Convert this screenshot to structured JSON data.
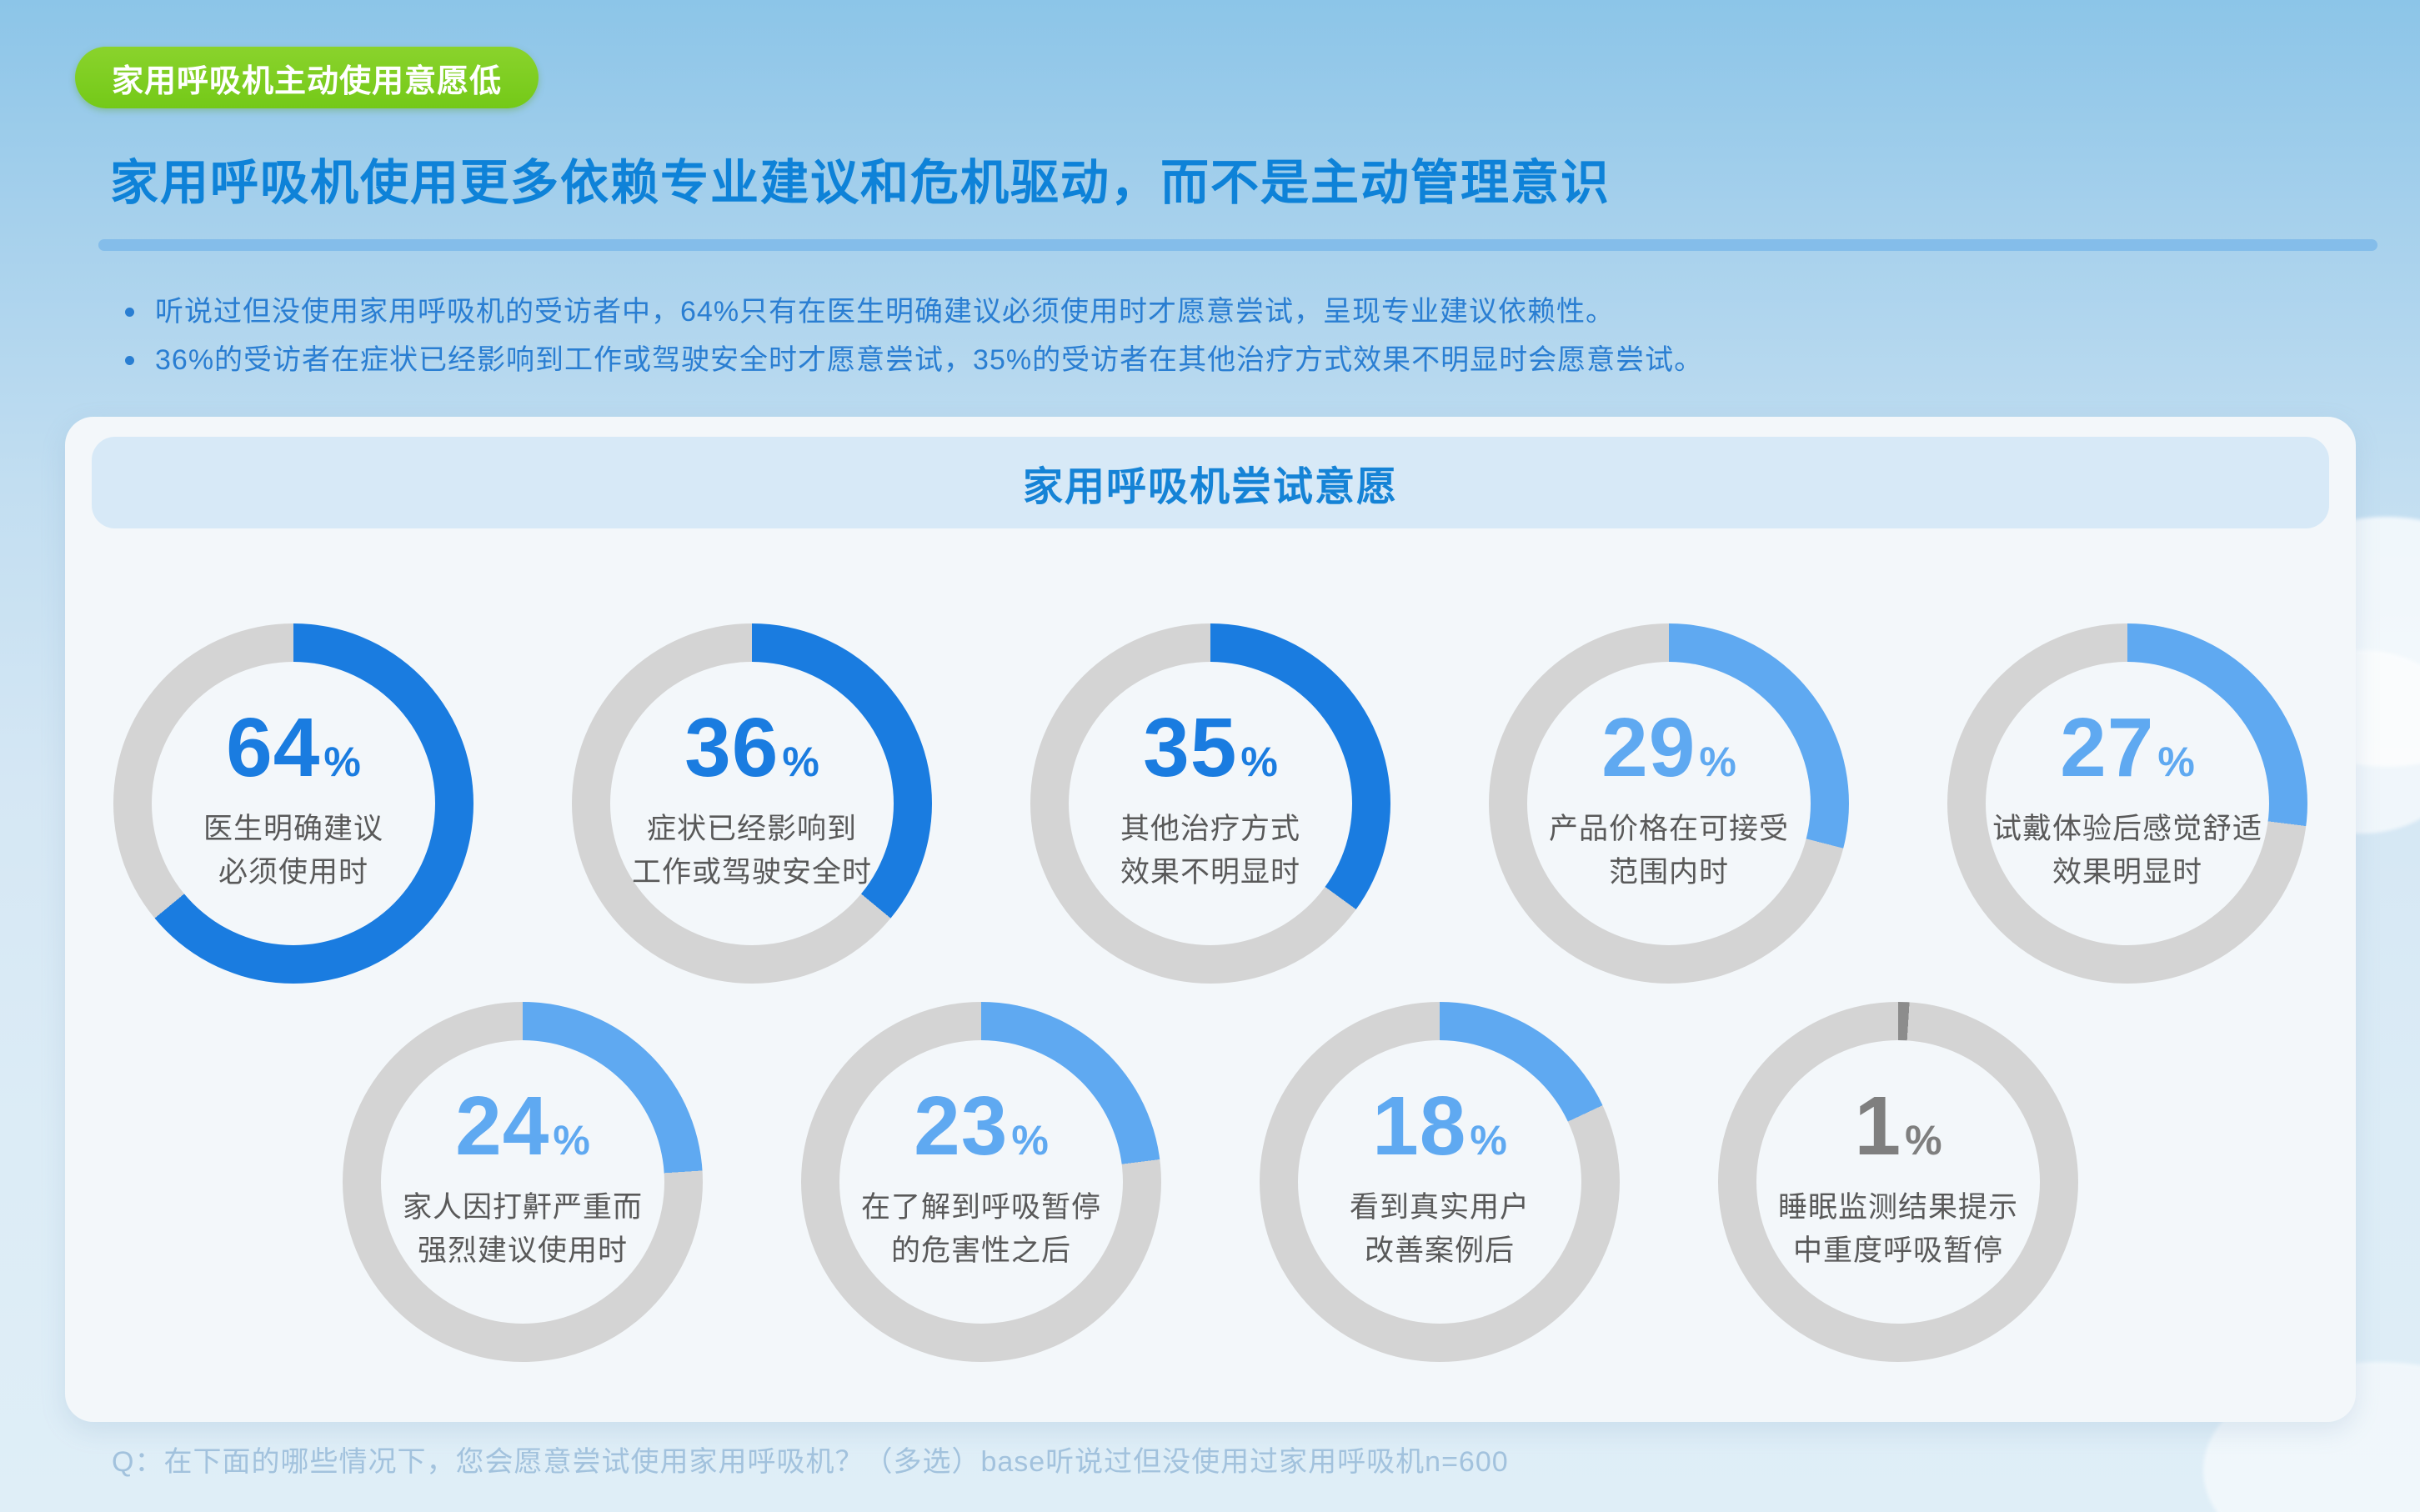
{
  "badge": {
    "label": "家用呼吸机主动使用意愿低"
  },
  "title": "家用呼吸机使用更多依赖专业建议和危机驱动，而不是主动管理意识",
  "bullets": [
    "听说过但没使用家用呼吸机的受访者中，64%只有在医生明确建议必须使用时才愿意尝试，呈现专业建议依赖性。",
    "36%的受访者在症状已经影响到工作或驾驶安全时才愿意尝试，35%的受访者在其他治疗方式效果不明显时会愿意尝试。"
  ],
  "panel": {
    "header": "家用呼吸机尝试意愿"
  },
  "footer": "Q：在下面的哪些情况下，您会愿意尝试使用家用呼吸机？（多选）base听说过但没使用过家用呼吸机n=600",
  "colors": {
    "accent_dark": "#1a7ce0",
    "accent_light": "#5fa9f1",
    "accent_gray": "#8c8c8c",
    "track_gray": "#d4d4d4",
    "title_blue": "#0e82d8",
    "badge_green": "#7ccd20"
  },
  "chart_data": {
    "type": "pie",
    "subtype": "donut-grid",
    "title": "家用呼吸机尝试意愿",
    "unit": "%",
    "start_angle": "12-oclock-clockwise",
    "items": [
      {
        "row": 1,
        "value": 64,
        "tone": "dark",
        "label": "医生明确建议\n必须使用时"
      },
      {
        "row": 1,
        "value": 36,
        "tone": "dark",
        "label": "症状已经影响到\n工作或驾驶安全时"
      },
      {
        "row": 1,
        "value": 35,
        "tone": "dark",
        "label": "其他治疗方式\n效果不明显时"
      },
      {
        "row": 1,
        "value": 29,
        "tone": "light",
        "label": "产品价格在可接受\n范围内时"
      },
      {
        "row": 1,
        "value": 27,
        "tone": "light",
        "label": "试戴体验后感觉舒适\n效果明显时"
      },
      {
        "row": 2,
        "value": 24,
        "tone": "light",
        "label": "家人因打鼾严重而\n强烈建议使用时"
      },
      {
        "row": 2,
        "value": 23,
        "tone": "light",
        "label": "在了解到呼吸暂停\n的危害性之后"
      },
      {
        "row": 2,
        "value": 18,
        "tone": "light",
        "label": "看到真实用户\n改善案例后"
      },
      {
        "row": 2,
        "value": 1,
        "tone": "gray",
        "label": "睡眠监测结果提示\n中重度呼吸暂停"
      }
    ]
  }
}
